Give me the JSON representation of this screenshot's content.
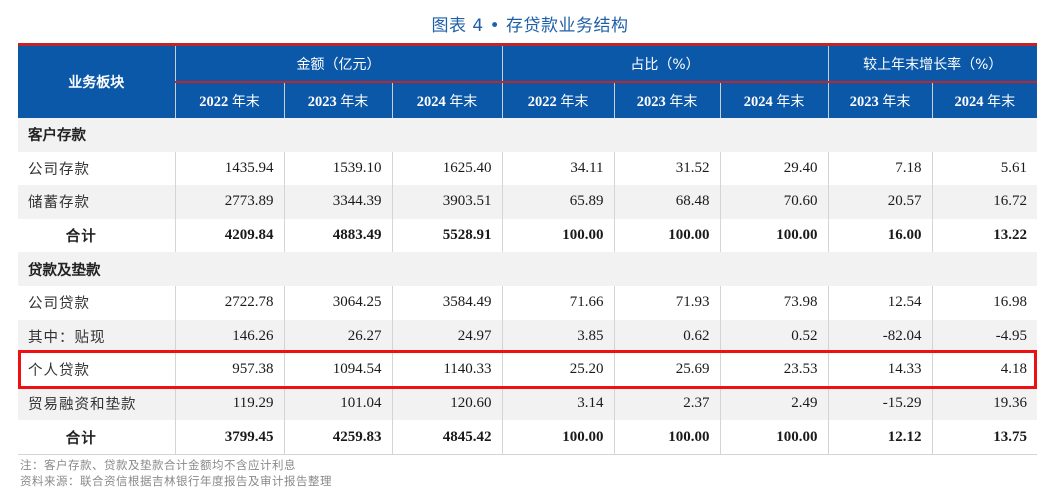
{
  "title": "图表 4 • 存贷款业务结构",
  "header": {
    "row_label": "业务板块",
    "groups": [
      {
        "label": "金额（亿元）",
        "span": 3
      },
      {
        "label": "占比（%）",
        "span": 3
      },
      {
        "label": "较上年末增长率（%）",
        "span": 2
      }
    ],
    "subcolumns": [
      {
        "year": "2022",
        "suffix": "年末"
      },
      {
        "year": "2023",
        "suffix": "年末"
      },
      {
        "year": "2024",
        "suffix": "年末"
      },
      {
        "year": "2022",
        "suffix": "年末"
      },
      {
        "year": "2023",
        "suffix": "年末"
      },
      {
        "year": "2024",
        "suffix": "年末"
      },
      {
        "year": "2023",
        "suffix": "年末"
      },
      {
        "year": "2024",
        "suffix": "年末"
      }
    ]
  },
  "rows": [
    {
      "type": "section",
      "label": "客户存款"
    },
    {
      "type": "data",
      "label": "公司存款",
      "values": [
        "1435.94",
        "1539.10",
        "1625.40",
        "34.11",
        "31.52",
        "29.40",
        "7.18",
        "5.61"
      ]
    },
    {
      "type": "data",
      "label": "储蓄存款",
      "values": [
        "2773.89",
        "3344.39",
        "3903.51",
        "65.89",
        "68.48",
        "70.60",
        "20.57",
        "16.72"
      ]
    },
    {
      "type": "total",
      "label": "合计",
      "values": [
        "4209.84",
        "4883.49",
        "5528.91",
        "100.00",
        "100.00",
        "100.00",
        "16.00",
        "13.22"
      ]
    },
    {
      "type": "section",
      "label": "贷款及垫款"
    },
    {
      "type": "data",
      "label": "公司贷款",
      "values": [
        "2722.78",
        "3064.25",
        "3584.49",
        "71.66",
        "71.93",
        "73.98",
        "12.54",
        "16.98"
      ]
    },
    {
      "type": "data",
      "label": "其中：贴现",
      "values": [
        "146.26",
        "26.27",
        "24.97",
        "3.85",
        "0.62",
        "0.52",
        "-82.04",
        "-4.95"
      ]
    },
    {
      "type": "data",
      "label": "个人贷款",
      "values": [
        "957.38",
        "1094.54",
        "1140.33",
        "25.20",
        "25.69",
        "23.53",
        "14.33",
        "4.18"
      ],
      "highlighted": true
    },
    {
      "type": "data",
      "label": "贸易融资和垫款",
      "values": [
        "119.29",
        "101.04",
        "120.60",
        "3.14",
        "2.37",
        "2.49",
        "-15.29",
        "19.36"
      ]
    },
    {
      "type": "total",
      "label": "合计",
      "values": [
        "3799.45",
        "4259.83",
        "4845.42",
        "100.00",
        "100.00",
        "100.00",
        "12.12",
        "13.75"
      ]
    }
  ],
  "notes": {
    "note": "注：客户存款、贷款及垫款合计金额均不含应计利息",
    "source": "资料来源：联合资信根据吉林银行年度报告及审计报告整理"
  },
  "colors": {
    "header_bg": "#0b58a8",
    "header_rule": "#c0252a",
    "title": "#1f5fa8",
    "highlight": "#ee1111",
    "stripe": "#f2f2f2"
  }
}
